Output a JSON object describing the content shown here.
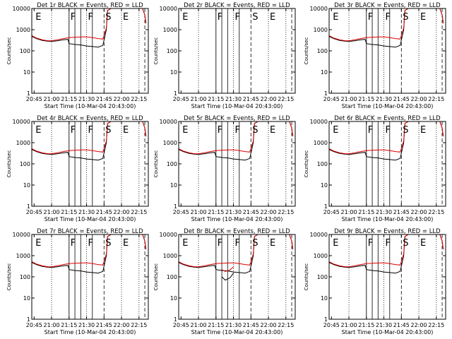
{
  "chart_data": {
    "type": "line",
    "grid": false,
    "layout": "3x3 grid of panels",
    "colors": {
      "events": "#000000",
      "lld": "#e00000"
    },
    "x_unit": "time (HH:MM)",
    "y_scale": "log",
    "x_range": [
      "20:43",
      "22:23"
    ],
    "y_range": [
      1,
      10000
    ],
    "xticks": [
      "20:45",
      "21:00",
      "21:15",
      "21:30",
      "21:45",
      "22:00",
      "22:15"
    ],
    "ytick_labels": [
      "1",
      "10",
      "100",
      "1000",
      "10000"
    ],
    "yticks": [
      1,
      10,
      100,
      1000,
      10000
    ],
    "xlabel": "Start Time (10-Mar-04 20:43:00)",
    "ylabel": "Counts/sec",
    "dotted_lines": [
      "21:00",
      "21:15",
      "21:30",
      "22:00",
      "22:15"
    ],
    "dashed_lines": [
      "21:45",
      "22:20"
    ],
    "solid_lines": [
      "21:15",
      "21:20",
      "21:25",
      "21:35"
    ],
    "markers_text": [
      {
        "label": "E",
        "time": "20:45"
      },
      {
        "label": "F",
        "time": "21:15"
      },
      {
        "label": "F",
        "time": "21:30"
      },
      {
        "label": "S",
        "time": "21:45"
      },
      {
        "label": "E",
        "time": "22:00"
      }
    ],
    "panels": [
      {
        "title": "Det 1r BLACK = Events, RED = LLD",
        "has_data": true,
        "variant": "normal"
      },
      {
        "title": "Det 2r BLACK = Events, RED = LLD",
        "has_data": false,
        "variant": "empty"
      },
      {
        "title": "Det 3r BLACK = Events, RED = LLD",
        "has_data": true,
        "variant": "normal"
      },
      {
        "title": "Det 4r BLACK = Events, RED = LLD",
        "has_data": true,
        "variant": "normal"
      },
      {
        "title": "Det 5r BLACK = Events, RED = LLD",
        "has_data": true,
        "variant": "normal"
      },
      {
        "title": "Det 6r BLACK = Events, RED = LLD",
        "has_data": true,
        "variant": "normal"
      },
      {
        "title": "Det 7r BLACK = Events, RED = LLD",
        "has_data": true,
        "variant": "normal"
      },
      {
        "title": "Det 8r BLACK = Events, RED = LLD",
        "has_data": true,
        "variant": "dip"
      },
      {
        "title": "Det 9r BLACK = Events, RED = LLD",
        "has_data": true,
        "variant": "normal"
      }
    ],
    "series": [
      {
        "role": "events",
        "color": "#000000",
        "x": [
          "20:43",
          "20:47",
          "20:52",
          "20:57",
          "21:00",
          "21:05",
          "21:10",
          "21:14",
          "21:15",
          "21:20",
          "21:25",
          "21:30",
          "21:35",
          "21:40",
          "21:44",
          "21:47",
          "21:48",
          "21:51"
        ],
        "values": [
          480,
          380,
          310,
          285,
          280,
          300,
          330,
          350,
          220,
          200,
          190,
          170,
          160,
          150,
          180,
          1000,
          8000,
          12000
        ]
      },
      {
        "role": "lld",
        "color": "#e00000",
        "x": [
          "20:43",
          "20:47",
          "20:52",
          "20:57",
          "21:00",
          "21:05",
          "21:10",
          "21:15",
          "21:20",
          "21:25",
          "21:30",
          "21:35",
          "21:40",
          "21:44",
          "21:47",
          "21:48",
          "21:51"
        ],
        "values": [
          520,
          400,
          330,
          300,
          300,
          330,
          380,
          420,
          440,
          450,
          460,
          420,
          380,
          360,
          1200,
          8000,
          12000
        ]
      },
      {
        "role": "events_end",
        "color": "#000000",
        "x": [
          "22:18",
          "22:20",
          "22:21"
        ],
        "values": [
          12000,
          5000,
          2000
        ]
      },
      {
        "role": "lld_end",
        "color": "#e00000",
        "x": [
          "22:18",
          "22:20",
          "22:21"
        ],
        "values": [
          12000,
          5000,
          2000
        ]
      }
    ],
    "dip_series": [
      {
        "role": "events",
        "color": "#000000",
        "x": [
          "21:20",
          "21:23",
          "21:27",
          "21:30"
        ],
        "values": [
          100,
          70,
          90,
          150
        ]
      },
      {
        "role": "lld",
        "color": "#e00000",
        "x": [
          "21:20",
          "21:23",
          "21:27",
          "21:30"
        ],
        "values": [
          220,
          180,
          210,
          300
        ]
      }
    ]
  }
}
